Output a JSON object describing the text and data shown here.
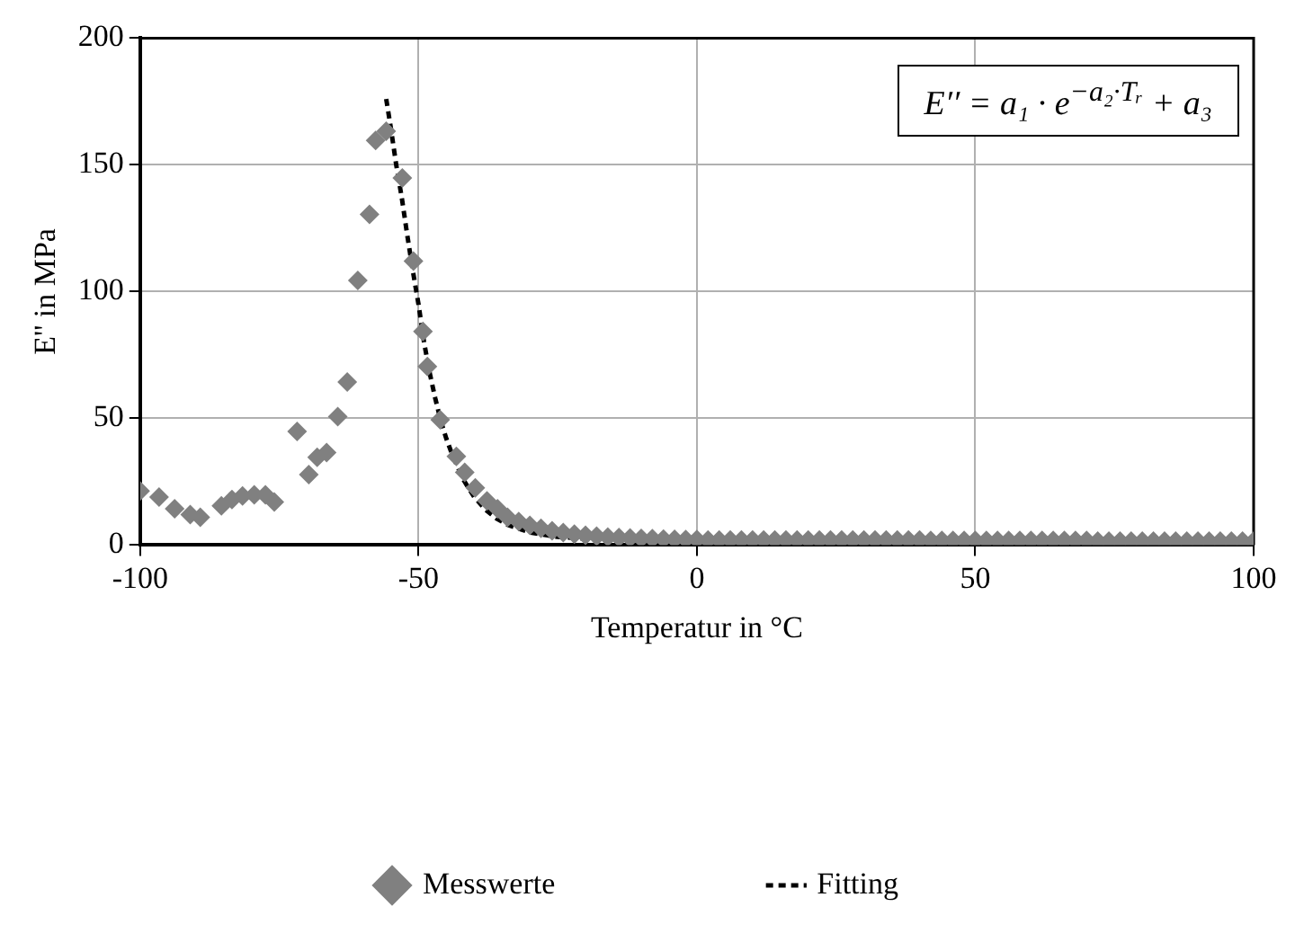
{
  "chart_data": {
    "type": "scatter",
    "xlabel": "Temperatur in °C",
    "ylabel": "E'' in MPa",
    "annotations": [
      "E′′ = a₁ · e$^{−a₂·Tᵣ}$ + a₃"
    ],
    "xlim": [
      -100,
      100
    ],
    "xticks": [
      -100,
      -50,
      0,
      50,
      100
    ],
    "ylim": [
      0,
      200
    ],
    "yticks": [
      0,
      50,
      100,
      150,
      200
    ],
    "grid": true,
    "legend": "bottom",
    "series": [
      {
        "name": "Messwerte",
        "type": "scatter",
        "marker": "diamond",
        "color": "#808080",
        "x": [
          -100,
          -96.6,
          -93.8,
          -91,
          -89.2,
          -85.4,
          -83.5,
          -81.6,
          -79.5,
          -77.5,
          -75.9,
          -71.8,
          -69.7,
          -68.2,
          -66.5,
          -64.5,
          -62.8,
          -60.9,
          -58.8,
          -57.7,
          -55.8,
          -52.9,
          -50.9,
          -49.2,
          -48.4,
          -46.1,
          -43.2,
          -41.7,
          -39.8,
          -37.7,
          -35.8,
          -34,
          -32,
          -30,
          -28,
          -26,
          -24,
          -22,
          -20,
          -18,
          -16,
          -14,
          -12,
          -10,
          -8,
          -6,
          -4,
          -2,
          0,
          2,
          4,
          6,
          8,
          10,
          12,
          14,
          16,
          18,
          20,
          22,
          24,
          26,
          28,
          30,
          32,
          34,
          36,
          38,
          40,
          42,
          44,
          46,
          48,
          50,
          52,
          54,
          56,
          58,
          60,
          62,
          64,
          66,
          68,
          70,
          72,
          74,
          76,
          78,
          80,
          82,
          84,
          86,
          88,
          90,
          92,
          94,
          96,
          98,
          100
        ],
        "values": [
          21.3,
          18.9,
          14.3,
          12,
          11,
          15.5,
          18,
          19.4,
          19.8,
          19.8,
          17,
          44.8,
          27.8,
          34.6,
          36.5,
          50.7,
          64.3,
          104.4,
          130.5,
          159.6,
          163.3,
          144.8,
          112,
          84.3,
          70.4,
          49.4,
          35,
          28.7,
          22.6,
          17.4,
          14.3,
          11,
          9.3,
          7.8,
          6.6,
          5.6,
          4.9,
          4.3,
          3.9,
          3.5,
          3.2,
          3,
          2.8,
          2.6,
          2.5,
          2.4,
          2.3,
          2.2,
          2.2,
          2,
          2,
          2,
          2,
          2,
          2,
          2,
          2,
          2,
          2,
          2,
          2,
          2,
          2,
          2,
          2,
          2,
          2,
          2,
          2,
          1.8,
          1.8,
          1.8,
          1.8,
          1.8,
          1.8,
          1.8,
          1.8,
          1.8,
          1.8,
          1.8,
          1.8,
          1.8,
          1.8,
          1.8,
          1.6,
          1.6,
          1.6,
          1.6,
          1.6,
          1.6,
          1.6,
          1.6,
          1.6,
          1.6,
          1.6,
          1.6,
          1.6,
          1.6,
          1.6
        ]
      },
      {
        "name": "Fitting",
        "type": "line",
        "marker": "none",
        "line_style": "dashed",
        "color": "#000000",
        "x": [
          -55.8,
          -55,
          -54,
          -53,
          -52,
          -51,
          -50,
          -49,
          -48,
          -47,
          -46,
          -45,
          -44,
          -42,
          -40,
          -38,
          -36,
          -34,
          -30,
          -25,
          -20,
          -10,
          0,
          25,
          50,
          100
        ],
        "values": [
          176,
          165,
          150,
          137,
          122,
          108,
          95,
          80,
          68,
          58,
          49,
          42,
          36,
          26,
          19,
          14,
          10.5,
          8,
          5,
          3.2,
          2.5,
          1.9,
          1.7,
          1.5,
          1.5,
          1.5
        ]
      }
    ]
  }
}
